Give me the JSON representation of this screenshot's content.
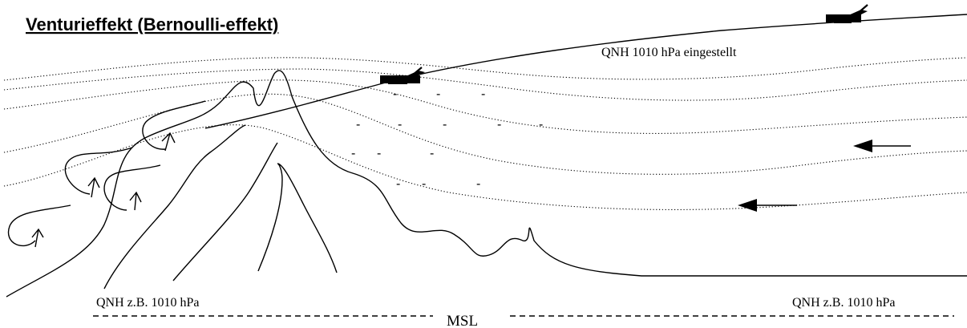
{
  "title": "Venturieffekt (Bernoulli-effekt)",
  "labels": {
    "qnh_set": "QNH 1010 hPa eingestellt",
    "qnh_left": "QNH  z.B. 1010 hPa",
    "qnh_right": "QNH  z.B. 1010 hPa",
    "msl": "MSL"
  },
  "low_pressure_marks": [
    [
      "-",
      "-",
      "-"
    ],
    [
      "-",
      "-",
      "-",
      "-",
      "-"
    ],
    [
      "-",
      "-",
      "-"
    ],
    [
      "-",
      "-",
      "-"
    ]
  ],
  "icons": {
    "aircraft": "aircraft-icon",
    "wind_arrow": "arrow-left-icon",
    "updraft_arrow": "arrow-up-icon"
  },
  "colors": {
    "ink": "#000000",
    "background": "#ffffff"
  }
}
